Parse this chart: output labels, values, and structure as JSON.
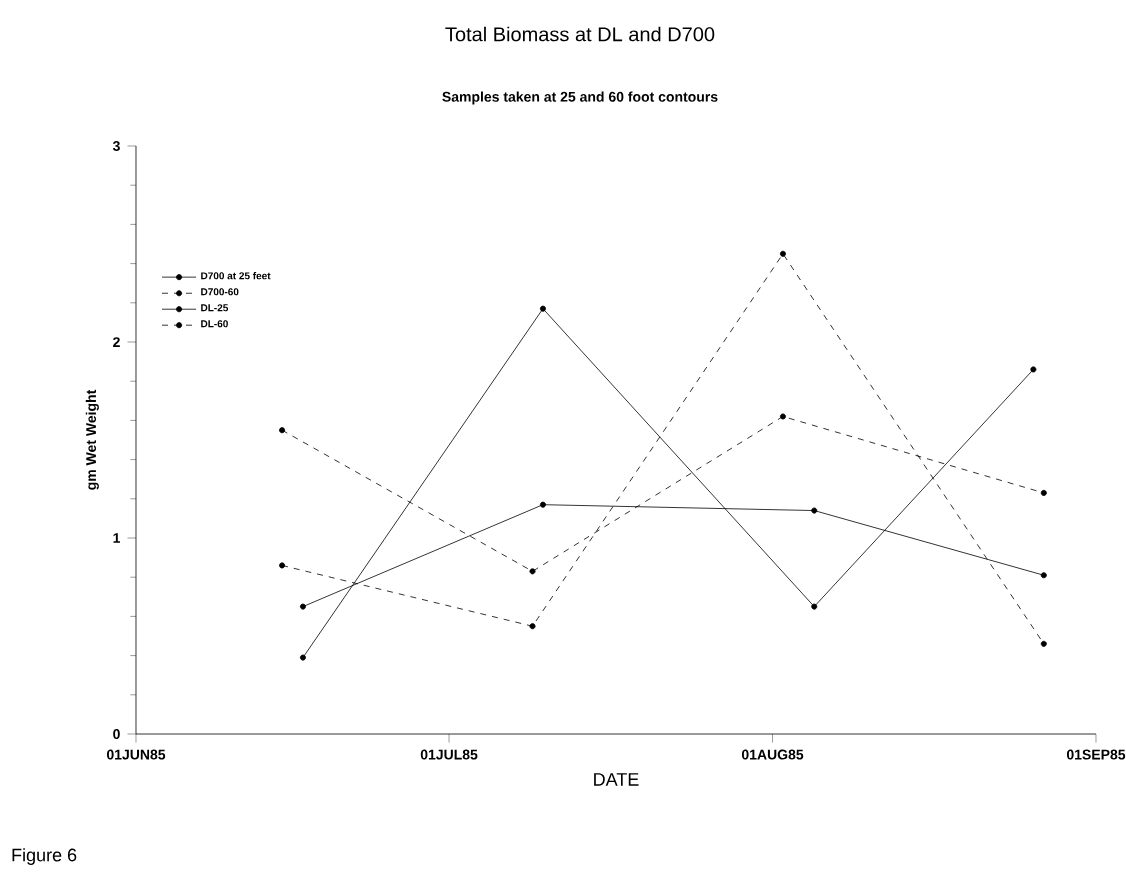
{
  "chart_data": {
    "type": "line",
    "title": "Total Biomass at DL and D700",
    "subtitle": "Samples taken at 25 and 60 foot contours",
    "xlabel": "DATE",
    "ylabel": "gm Wet Weight",
    "annotations": [
      "Figure 6"
    ],
    "xlim": [
      "1985-06-01",
      "1985-09-01"
    ],
    "xticks": [
      {
        "value": "1985-06-01",
        "label": "01JUN85"
      },
      {
        "value": "1985-07-01",
        "label": "01JUL85"
      },
      {
        "value": "1985-08-01",
        "label": "01AUG85"
      },
      {
        "value": "1985-09-01",
        "label": "01SEP85"
      }
    ],
    "ylim": [
      0,
      3
    ],
    "yticks": [
      0,
      1,
      2,
      3
    ],
    "legend": "top left",
    "marker": "circle",
    "grid": false,
    "series": [
      {
        "name": "D700 at 25 feet",
        "color": "#000000",
        "line_style": "solid",
        "x": [
          "1985-06-17",
          "1985-07-10",
          "1985-08-05",
          "1985-08-26"
        ],
        "values": [
          0.39,
          2.17,
          0.65,
          1.86
        ]
      },
      {
        "name": "D700-60",
        "color": "#000000",
        "line_style": "dashed",
        "x": [
          "1985-06-15",
          "1985-07-09",
          "1985-08-02",
          "1985-08-27"
        ],
        "values": [
          0.86,
          0.55,
          2.45,
          0.46
        ]
      },
      {
        "name": "DL-25",
        "color": "#000000",
        "line_style": "solid",
        "x": [
          "1985-06-17",
          "1985-07-10",
          "1985-08-05",
          "1985-08-27"
        ],
        "values": [
          0.65,
          1.17,
          1.14,
          0.81
        ]
      },
      {
        "name": "DL-60",
        "color": "#000000",
        "line_style": "dashed",
        "x": [
          "1985-06-15",
          "1985-07-09",
          "1985-08-02",
          "1985-08-27"
        ],
        "values": [
          1.55,
          0.83,
          1.62,
          1.23
        ]
      }
    ]
  }
}
